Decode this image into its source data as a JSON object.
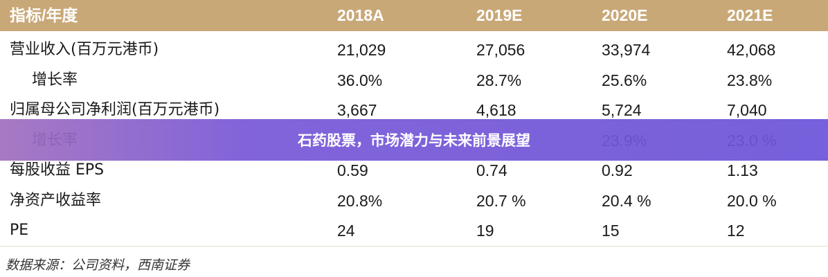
{
  "table": {
    "columns": [
      "指标/年度",
      "2018A",
      "2019E",
      "2020E",
      "2021E"
    ],
    "rows": [
      [
        "营业收入(百万元港币)",
        "21,029",
        "27,056",
        "33,974",
        "42,068"
      ],
      [
        "增长率",
        "36.0%",
        "28.7%",
        "25.6%",
        "23.8%"
      ],
      [
        "归属母公司净利润(百万元港币)",
        "3,667",
        "4,618",
        "5,724",
        "7,040"
      ],
      [
        "增长率",
        null,
        null,
        "23.9%",
        "23.0 %"
      ],
      [
        "每股收益 EPS",
        "0.59",
        "0.74",
        "0.92",
        "1.13"
      ],
      [
        "净资产收益率",
        "20.8%",
        "20.7 %",
        "20.4 %",
        "20.0 %"
      ],
      [
        "PE",
        "24",
        "19",
        "15",
        "12"
      ]
    ]
  },
  "source": "数据来源：公司资料，西南证券",
  "banner": {
    "title": "石药股票，市场潜力与未来前景展望"
  }
}
